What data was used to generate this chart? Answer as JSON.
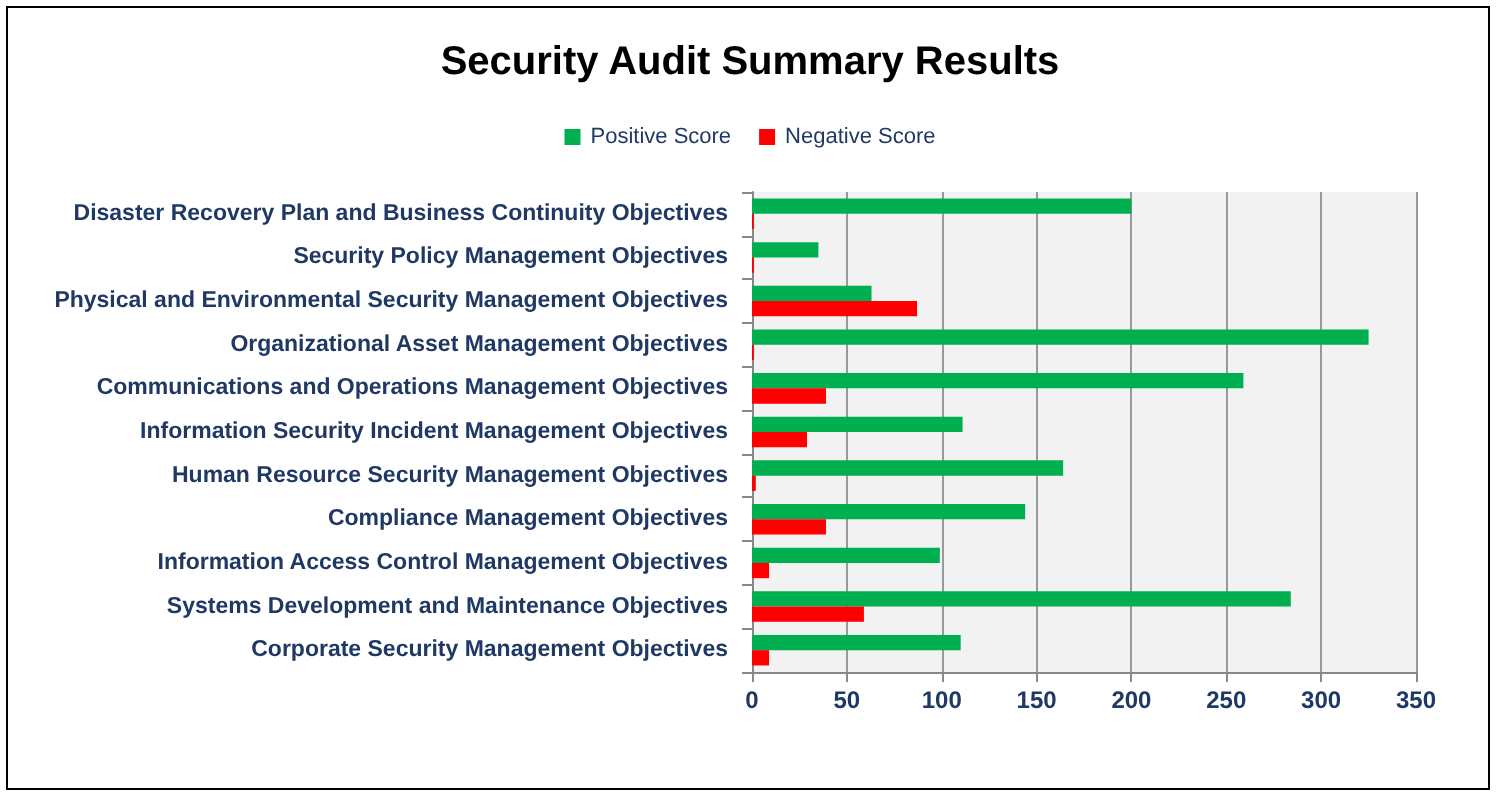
{
  "chart_data": {
    "type": "bar",
    "orientation": "horizontal",
    "title": "Security Audit Summary Results",
    "categories": [
      "Disaster Recovery Plan and Business Continuity Objectives",
      "Security Policy Management Objectives",
      "Physical and Environmental Security Management Objectives",
      "Organizational Asset Management Objectives",
      "Communications and Operations Management Objectives",
      "Information Security Incident Management Objectives",
      "Human Resource Security Management Objectives",
      "Compliance Management Objectives",
      "Information Access Control Management Objectives",
      "Systems Development and Maintenance Objectives",
      "Corporate Security Management Objectives"
    ],
    "series": [
      {
        "name": "Positive Score",
        "color": "#00b050",
        "values": [
          200,
          35,
          63,
          325,
          259,
          111,
          164,
          144,
          99,
          284,
          110
        ]
      },
      {
        "name": "Negative Score",
        "color": "#ff0000",
        "values": [
          1,
          1,
          87,
          1,
          39,
          29,
          2,
          39,
          9,
          59,
          9
        ]
      }
    ],
    "xlim": [
      0,
      350
    ],
    "xticks": [
      0,
      50,
      100,
      150,
      200,
      250,
      300,
      350
    ],
    "grid": "x",
    "legend": "top"
  }
}
